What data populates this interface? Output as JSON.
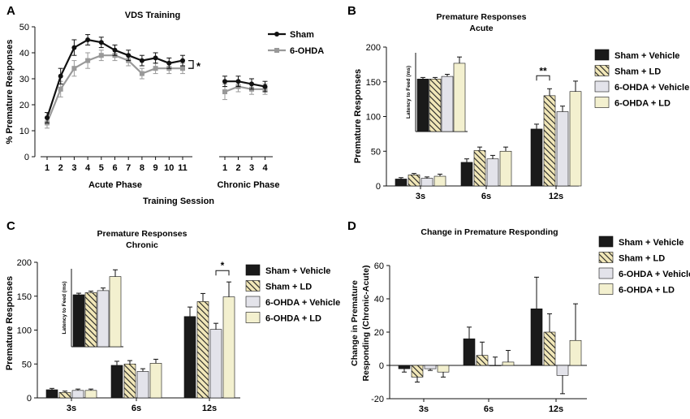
{
  "chart_data": [
    {
      "panel": "A",
      "type": "line",
      "title": "VDS Training",
      "xlabel": "Training Session",
      "ylabel": "% Premature Responses",
      "ylim": [
        0,
        50
      ],
      "yticks": [
        0,
        10,
        20,
        30,
        40,
        50
      ],
      "phase_labels": [
        "Acute Phase",
        "Chronic Phase"
      ],
      "acute_categories": [
        "1",
        "2",
        "3",
        "4",
        "5",
        "6",
        "7",
        "8",
        "9",
        "10",
        "11"
      ],
      "chronic_categories": [
        "1",
        "2",
        "3",
        "4"
      ],
      "significance": "*",
      "series": [
        {
          "name": "Sham",
          "color": "#111111",
          "acute": [
            15,
            31,
            42,
            45,
            44,
            41,
            39,
            37,
            38,
            36,
            37
          ],
          "acute_err": [
            2,
            3,
            3,
            2,
            2,
            2,
            2,
            2,
            2,
            2,
            2
          ],
          "chronic": [
            29,
            29,
            28,
            27
          ],
          "chronic_err": [
            2,
            2,
            2,
            2
          ]
        },
        {
          "name": "6-OHDA",
          "color": "#999999",
          "acute": [
            13,
            26,
            34,
            37,
            39,
            39,
            37,
            32,
            34,
            34,
            34
          ],
          "acute_err": [
            2,
            3,
            3,
            3,
            2,
            2,
            2,
            2,
            2,
            2,
            2
          ],
          "chronic": [
            25,
            27,
            26,
            26
          ],
          "chronic_err": [
            3,
            2,
            2,
            2
          ]
        }
      ]
    },
    {
      "panel": "B",
      "type": "bar",
      "title": "Premature Responses",
      "subtitle": "Acute",
      "ylabel": "Premature Responses",
      "ylim": [
        0,
        200
      ],
      "yticks": [
        0,
        50,
        100,
        150,
        200
      ],
      "categories": [
        "3s",
        "6s",
        "12s"
      ],
      "significance": "**",
      "series": [
        {
          "name": "Sham + Vehicle",
          "values": [
            10,
            34,
            82
          ],
          "err": [
            2,
            5,
            7
          ]
        },
        {
          "name": "Sham + LD",
          "values": [
            16,
            51,
            130
          ],
          "err": [
            2,
            5,
            10
          ]
        },
        {
          "name": "6-OHDA + Vehicle",
          "values": [
            11,
            39,
            107
          ],
          "err": [
            2,
            5,
            8
          ]
        },
        {
          "name": "6-OHDA + LD",
          "values": [
            14,
            50,
            136
          ],
          "err": [
            3,
            6,
            15
          ]
        }
      ],
      "inset": {
        "ylabel": "Latency to Feed (ms)",
        "values": [
          100,
          100,
          105,
          130
        ],
        "err": [
          3,
          3,
          4,
          12
        ]
      }
    },
    {
      "panel": "C",
      "type": "bar",
      "title": "Premature Responses",
      "subtitle": "Chronic",
      "ylabel": "Premature Responses",
      "ylim": [
        0,
        200
      ],
      "yticks": [
        0,
        50,
        100,
        150,
        200
      ],
      "categories": [
        "3s",
        "6s",
        "12s"
      ],
      "significance": "*",
      "series": [
        {
          "name": "Sham + Vehicle",
          "values": [
            12,
            48,
            120
          ],
          "err": [
            2,
            6,
            14
          ]
        },
        {
          "name": "Sham + LD",
          "values": [
            8,
            50,
            142
          ],
          "err": [
            2,
            5,
            12
          ]
        },
        {
          "name": "6-OHDA + Vehicle",
          "values": [
            11,
            39,
            101
          ],
          "err": [
            2,
            4,
            9
          ]
        },
        {
          "name": "6-OHDA + LD",
          "values": [
            11,
            51,
            149
          ],
          "err": [
            2,
            6,
            22
          ]
        }
      ],
      "inset": {
        "ylabel": "Latency to Feed (ms)",
        "values": [
          100,
          104,
          108,
          135
        ],
        "err": [
          3,
          3,
          5,
          13
        ]
      }
    },
    {
      "panel": "D",
      "type": "bar",
      "title": "Change in Premature Responding",
      "ylabel": "Change in Premature Responding (Chronic-Acute)",
      "ylim": [
        -20,
        60
      ],
      "yticks": [
        -20,
        0,
        20,
        40,
        60
      ],
      "categories": [
        "3s",
        "6s",
        "12s"
      ],
      "series": [
        {
          "name": "Sham + Vehicle",
          "values": [
            -2,
            16,
            34
          ],
          "err": [
            2,
            7,
            19
          ]
        },
        {
          "name": "Sham + LD",
          "values": [
            -7,
            6,
            20
          ],
          "err": [
            3,
            8,
            11
          ]
        },
        {
          "name": "6-OHDA + Vehicle",
          "values": [
            -2,
            0,
            -6
          ],
          "err": [
            1,
            5,
            11
          ]
        },
        {
          "name": "6-OHDA + LD",
          "values": [
            -4,
            2,
            15
          ],
          "err": [
            3,
            7,
            22
          ]
        }
      ]
    }
  ],
  "styles": {
    "bar_fills": [
      "#1a1a1a",
      "hatch",
      "#e3e3ea",
      "#f3f0cf"
    ]
  }
}
